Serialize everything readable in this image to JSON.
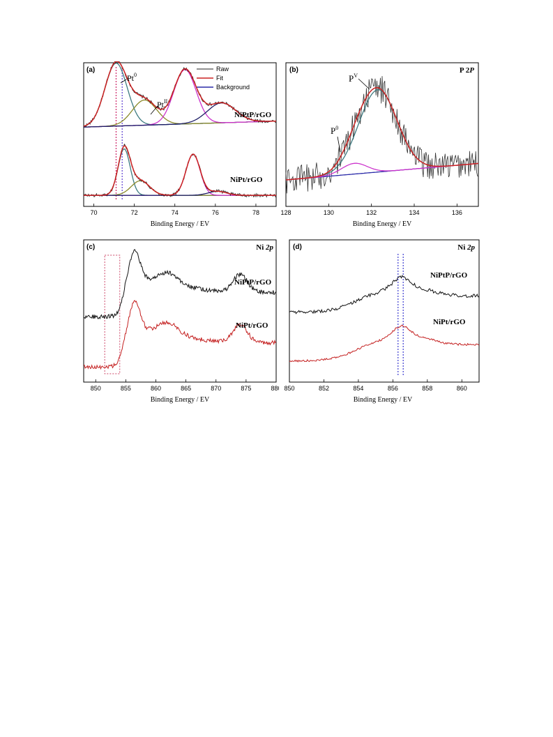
{
  "chart_data": [
    {
      "panel_label": "(a)",
      "type": "line",
      "xlabel": "Binding Energy / EV",
      "xlim": [
        69.5,
        79
      ],
      "xticks": [
        70,
        72,
        74,
        76,
        78
      ],
      "colors": {
        "raw": "#222222",
        "fit": "#cc2222",
        "background": "#2a2aa8",
        "pt0": "#3d7a80",
        "ptII": "#8a8a2a",
        "pt5": "#cc33cc",
        "pt7": "#1e1e66"
      },
      "legend": {
        "position": "top-right",
        "entries": [
          "Raw",
          "Fit",
          "Background"
        ]
      },
      "annotations": [
        {
          "base": "Pt",
          "sup": "0"
        },
        {
          "base": "Pt",
          "sup": "II"
        }
      ],
      "sample_labels": [
        "NiPtP/rGO",
        "NiPt/rGO"
      ],
      "reference_lines_x": [
        71.1,
        71.4
      ],
      "traces": [
        {
          "sample": "NiPtP/rGO",
          "offset": 1.0,
          "background": [
            0.05,
            0.14
          ],
          "peaks": [
            {
              "center": 71.1,
              "height": 0.95,
              "width": 0.55,
              "color": "#3d7a80"
            },
            {
              "center": 72.5,
              "height": 0.38,
              "width": 0.6,
              "color": "#8a8a2a"
            },
            {
              "center": 74.5,
              "height": 0.82,
              "width": 0.55,
              "color": "#cc33cc"
            },
            {
              "center": 76.3,
              "height": 0.3,
              "width": 0.7,
              "color": "#1e1e66"
            }
          ]
        },
        {
          "sample": "NiPt/rGO",
          "offset": 0.0,
          "background": [
            0.02,
            0.02
          ],
          "peaks": [
            {
              "center": 71.5,
              "height": 0.7,
              "width": 0.3,
              "color": "#3d7a80"
            },
            {
              "center": 72.3,
              "height": 0.22,
              "width": 0.45,
              "color": "#8a8a2a"
            },
            {
              "center": 74.9,
              "height": 0.62,
              "width": 0.35,
              "color": "#cc33cc"
            },
            {
              "center": 76.1,
              "height": 0.06,
              "width": 0.45,
              "color": "#1e1e66"
            }
          ]
        }
      ]
    },
    {
      "panel_label": "(b)",
      "type": "line",
      "title": {
        "base": "P 2",
        "italic": "P"
      },
      "xlabel": "Binding Energy / EV",
      "xlim": [
        128,
        137
      ],
      "xticks": [
        128,
        130,
        132,
        134,
        136
      ],
      "colors": {
        "raw": "#333333",
        "fit": "#cc2222",
        "background": "#2a2aa8",
        "pv": "#3d7a80",
        "p0": "#cc33cc"
      },
      "annotations": [
        {
          "base": "P",
          "sup": "V"
        },
        {
          "base": "P",
          "sup": "0"
        }
      ],
      "background": [
        0.0,
        0.2
      ],
      "peaks": [
        {
          "center": 132.3,
          "height": 1.0,
          "width": 0.9,
          "color": "#3d7a80"
        },
        {
          "center": 131.2,
          "height": 0.13,
          "width": 0.6,
          "color": "#cc33cc"
        }
      ]
    },
    {
      "panel_label": "(c)",
      "type": "line",
      "title": {
        "base": "Ni ",
        "italic": "2p"
      },
      "xlabel": "Binding Energy / EV",
      "xlim": [
        848,
        880
      ],
      "xticks": [
        850,
        855,
        860,
        865,
        870,
        875,
        880
      ],
      "sample_labels": [
        "NiPtP/rGO",
        "NiPt/rGO"
      ],
      "highlight_box_x": [
        851.5,
        854
      ],
      "traces": [
        {
          "sample": "NiPtP/rGO",
          "color": "#111111",
          "offset": 0.48
        },
        {
          "sample": "NiPt/rGO",
          "color": "#c42020",
          "offset": 0.0
        }
      ]
    },
    {
      "panel_label": "(d)",
      "type": "line",
      "title": {
        "base": "Ni ",
        "italic": "2p"
      },
      "xlabel": "Binding Energy / EV",
      "xlim": [
        850,
        861
      ],
      "xticks": [
        850,
        852,
        854,
        856,
        858,
        860
      ],
      "sample_labels": [
        "NiPtP/rGO",
        "NiPt/rGO"
      ],
      "reference_lines_x": [
        856.3,
        856.6
      ],
      "traces": [
        {
          "sample": "NiPtP/rGO",
          "color": "#111111",
          "offset": 0.5
        },
        {
          "sample": "NiPt/rGO",
          "color": "#c42020",
          "offset": 0.0
        }
      ]
    }
  ]
}
